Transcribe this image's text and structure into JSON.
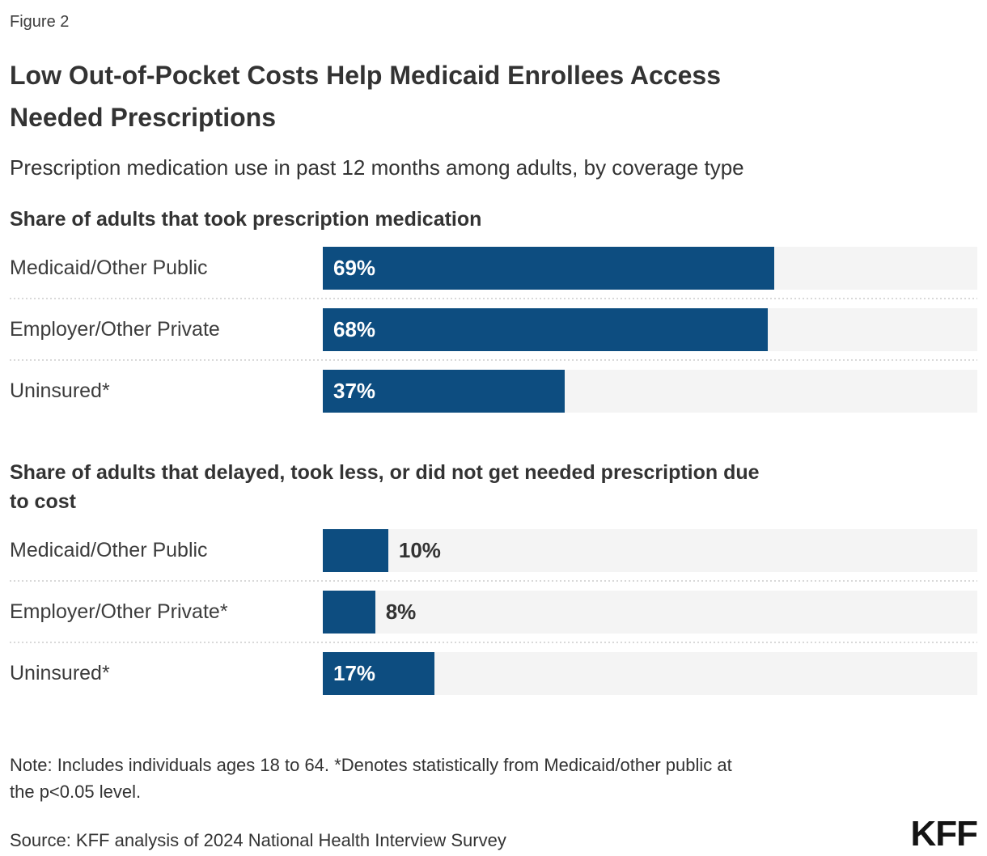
{
  "figure_label": "Figure 2",
  "title": "Low Out-of-Pocket Costs Help Medicaid Enrollees Access\nNeeded Prescriptions",
  "subtitle": "Prescription medication use in past 12 months among adults, by coverage type",
  "note": "Note: Includes individuals ages 18 to 64. *Denotes statistically from Medicaid/other public at\nthe p<0.05 level.",
  "source": "Source: KFF analysis of 2024 National Health Interview Survey",
  "logo": "KFF",
  "colors": {
    "bar_blue": "#0d4d80",
    "track_gray": "#f4f4f4",
    "separator_gray": "#d9d9d9",
    "text_dark": "#333333"
  },
  "chart_data": [
    {
      "type": "bar",
      "orientation": "horizontal",
      "title": "Share of adults that took prescription medication",
      "categories": [
        "Medicaid/Other Public",
        "Employer/Other Private",
        "Uninsured*"
      ],
      "values": [
        69,
        68,
        37
      ],
      "value_labels": [
        "69%",
        "68%",
        "37%"
      ],
      "xlim": [
        0,
        100
      ],
      "unit": "percent",
      "grid": false,
      "value_label_position": [
        "inside",
        "inside",
        "inside"
      ]
    },
    {
      "type": "bar",
      "orientation": "horizontal",
      "title": "Share of adults that delayed, took less, or did not get needed prescription due\nto cost",
      "categories": [
        "Medicaid/Other Public",
        "Employer/Other Private*",
        "Uninsured*"
      ],
      "values": [
        10,
        8,
        17
      ],
      "value_labels": [
        "10%",
        "8%",
        "17%"
      ],
      "xlim": [
        0,
        100
      ],
      "unit": "percent",
      "grid": false,
      "value_label_position": [
        "outside",
        "outside",
        "inside"
      ]
    }
  ]
}
